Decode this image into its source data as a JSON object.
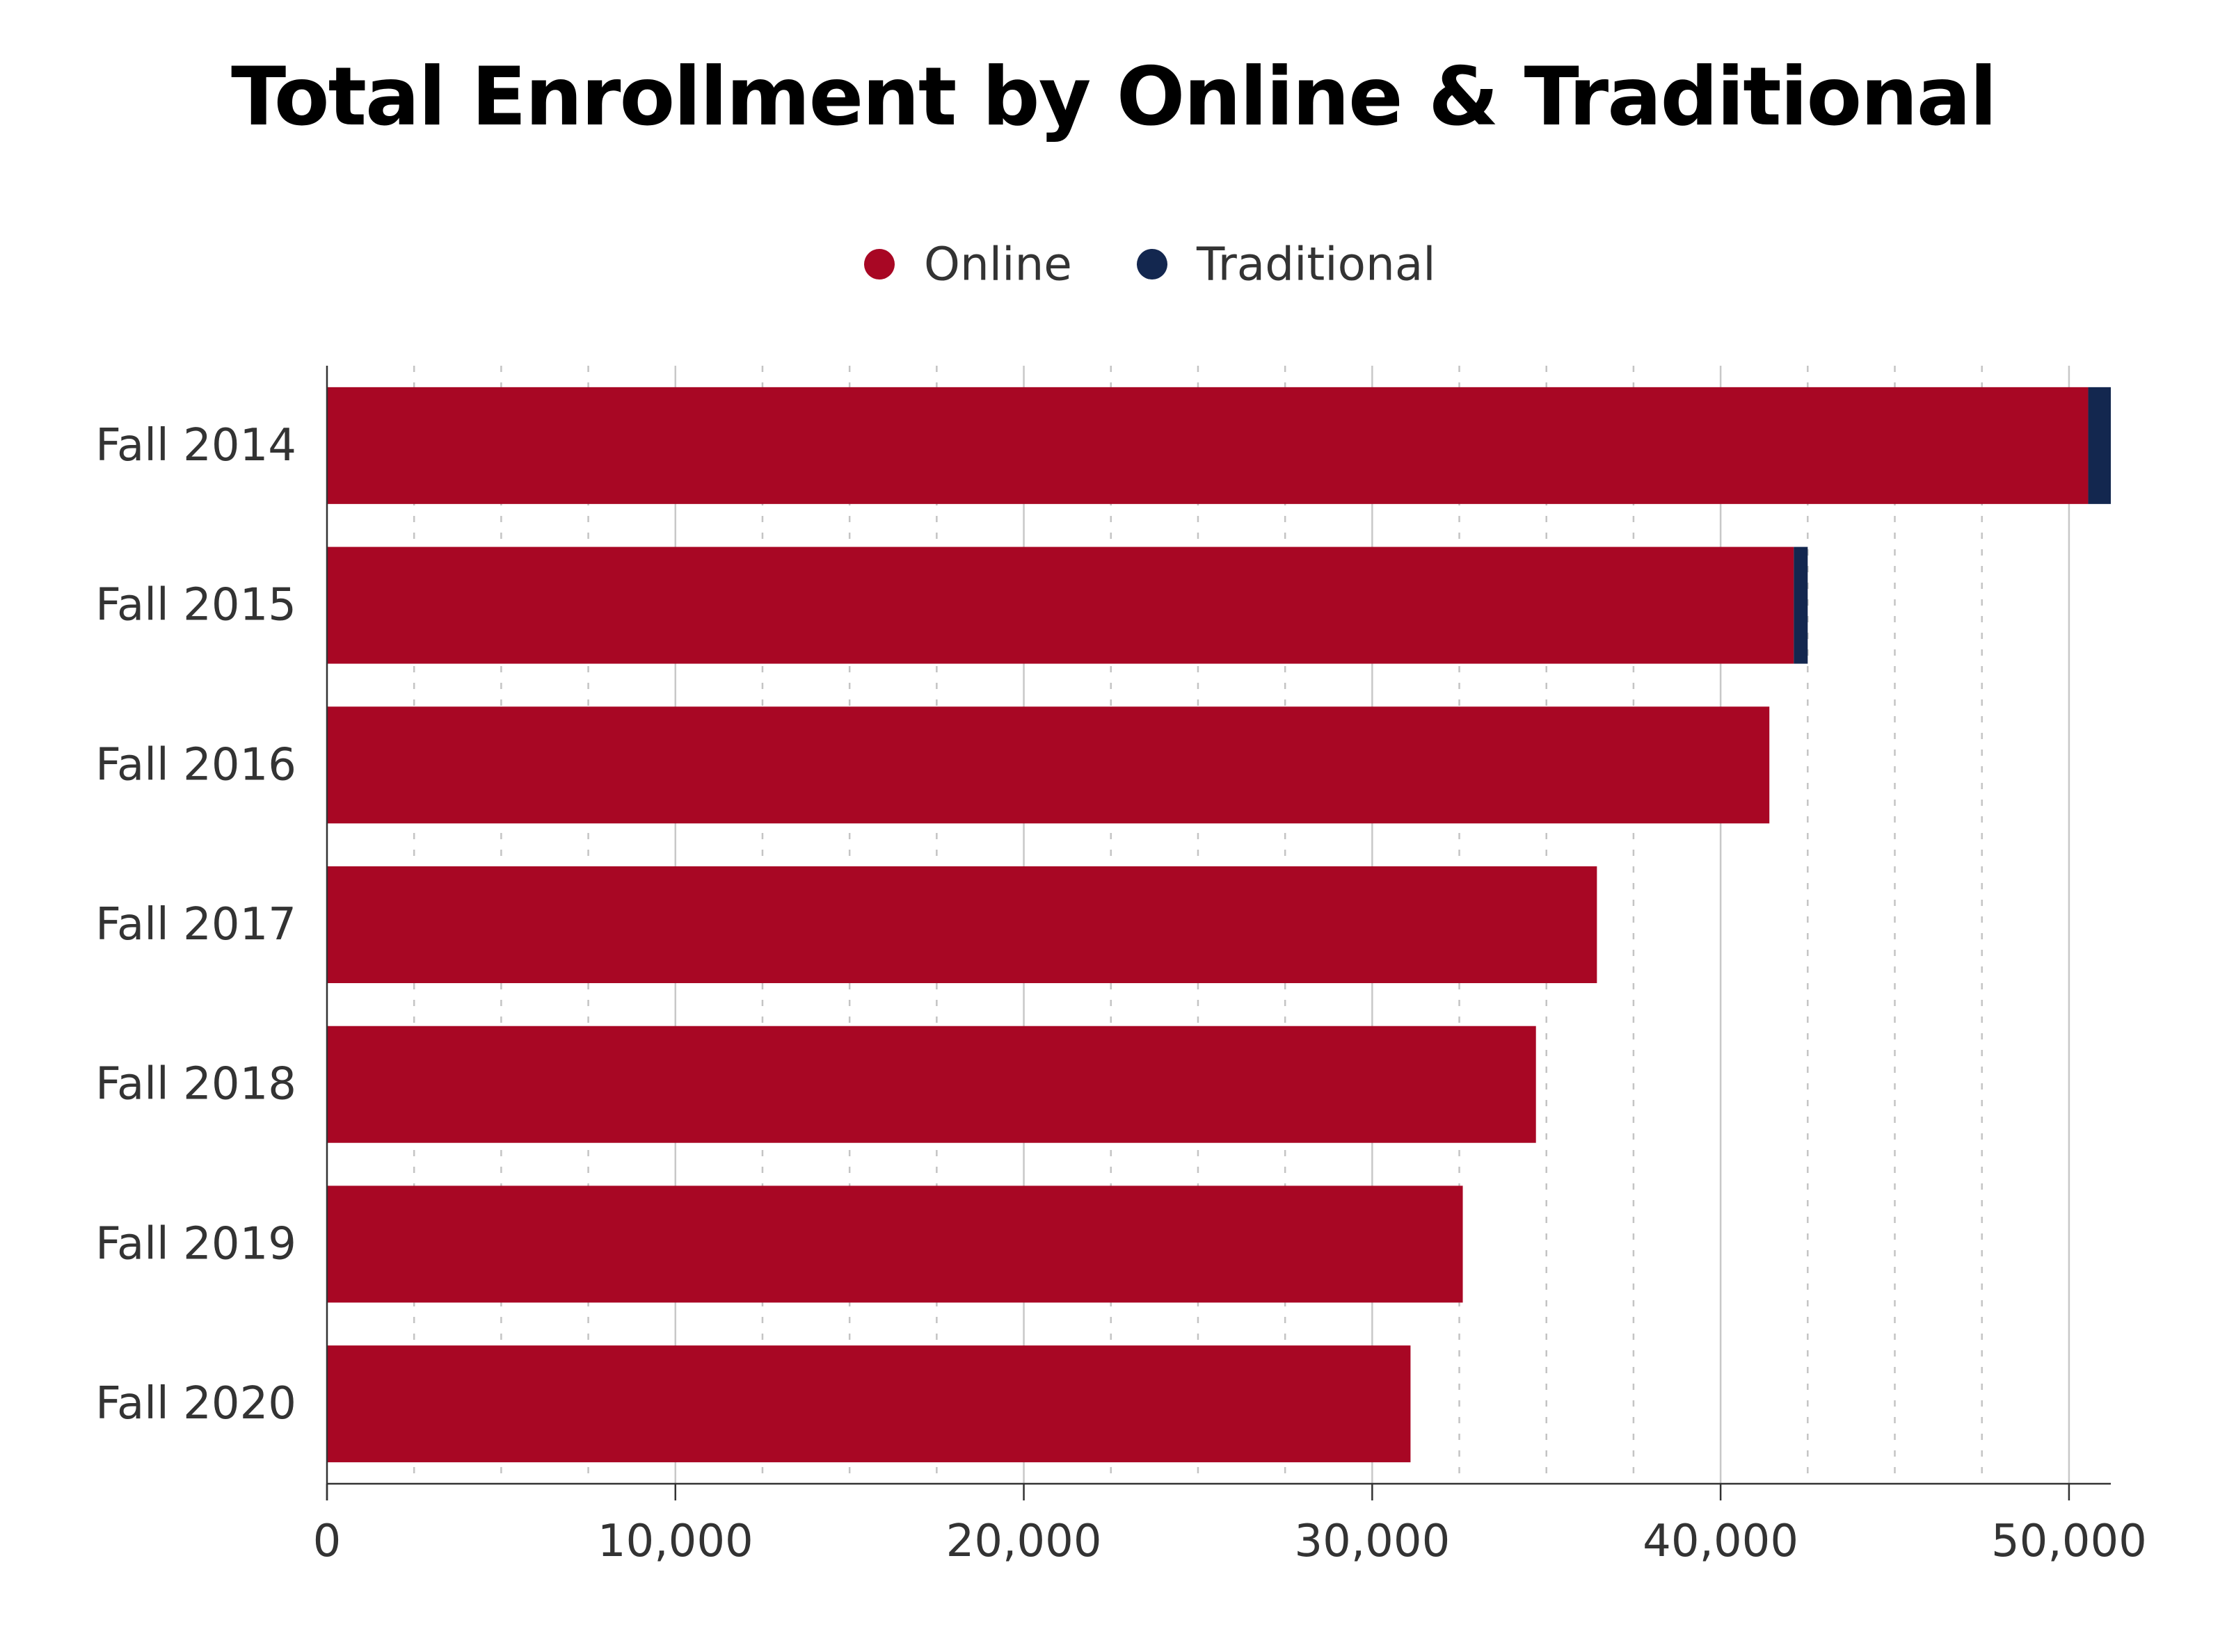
{
  "chart_data": {
    "type": "bar",
    "orientation": "horizontal",
    "stacked": true,
    "title": "Total Enrollment by Online & Traditional",
    "categories": [
      "Fall 2014",
      "Fall 2015",
      "Fall 2016",
      "Fall 2017",
      "Fall 2018",
      "Fall 2019",
      "Fall 2020"
    ],
    "series": [
      {
        "name": "Online",
        "color": "#a80724",
        "values": [
          50550,
          42100,
          41400,
          36450,
          34700,
          32600,
          31100
        ]
      },
      {
        "name": "Traditional",
        "color": "#13274f",
        "values": [
          650,
          400,
          0,
          0,
          0,
          0,
          0
        ]
      }
    ],
    "xlim": [
      0,
      51200
    ],
    "x_ticks": [
      0,
      10000,
      20000,
      30000,
      40000,
      50000
    ],
    "x_tick_labels": [
      "0",
      "10,000",
      "20,000",
      "30,000",
      "40,000",
      "50,000"
    ],
    "minor_grid_step": 2500,
    "xlabel": "",
    "ylabel": "",
    "grid": true,
    "legend_position": "top-center"
  }
}
